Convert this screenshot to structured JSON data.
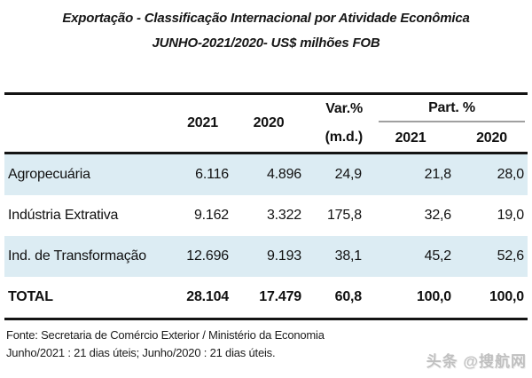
{
  "chart_data": {
    "type": "table",
    "title": "Exportação - Classificação Internacional por Atividade Econômica",
    "subtitle": "JUNHO-2021/2020- US$ milhões FOB",
    "columns": {
      "category": "",
      "y2021": "2021",
      "y2020": "2020",
      "var_line1": "Var.%",
      "var_line2": "(m.d.)",
      "part_group": "Part. %",
      "part_2021": "2021",
      "part_2020": "2020"
    },
    "rows": [
      {
        "label": "Agropecuária",
        "v2021": "6.116",
        "v2020": "4.896",
        "var": "24,9",
        "part2021": "21,8",
        "part2020": "28,0"
      },
      {
        "label": "Indústria Extrativa",
        "v2021": "9.162",
        "v2020": "3.322",
        "var": "175,8",
        "part2021": "32,6",
        "part2020": "19,0"
      },
      {
        "label": "Ind. de Transformação",
        "v2021": "12.696",
        "v2020": "9.193",
        "var": "38,1",
        "part2021": "45,2",
        "part2020": "52,6"
      }
    ],
    "total": {
      "label": "TOTAL",
      "v2021": "28.104",
      "v2020": "17.479",
      "var": "60,8",
      "part2021": "100,0",
      "part2020": "100,0"
    }
  },
  "footer": {
    "line1": "Fonte: Secretaria de Comércio Exterior / Ministério da Economia",
    "line2": "Junho/2021 : 21 dias úteis; Junho/2020 : 21 dias úteis."
  },
  "watermark": "头条 @搜航网",
  "colors": {
    "row_highlight": "#dcecf3",
    "border": "#141414",
    "part_underline": "#a0a0a0",
    "watermark": "#c0c0c0"
  }
}
